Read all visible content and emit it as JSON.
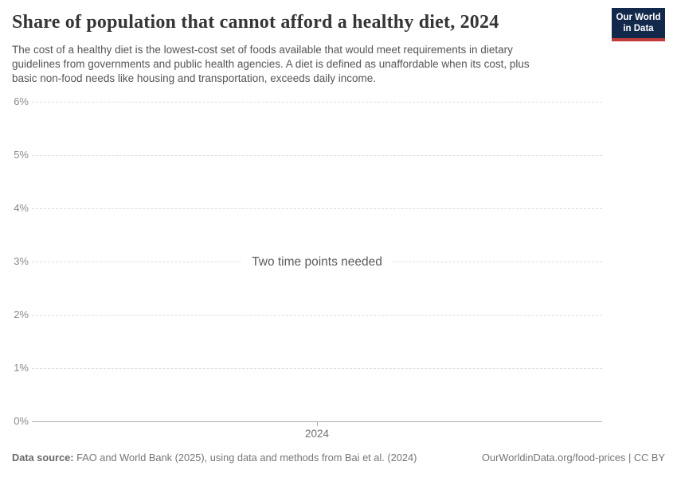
{
  "header": {
    "title": "Share of population that cannot afford a healthy diet, 2024",
    "subtitle_lines": [
      "The cost of a healthy diet is the lowest-cost set of foods available that would meet requirements in dietary",
      "guidelines from governments and public health agencies. A diet is defined as unaffordable when its cost, plus",
      "basic non-food needs like housing and transportation, exceeds daily income."
    ],
    "logo": {
      "line1": "Our World",
      "line2": "in Data",
      "bg_color": "#12294b",
      "accent_color": "#c23b3b"
    }
  },
  "chart_data": {
    "type": "line",
    "title": "Share of population that cannot afford a healthy diet, 2024",
    "series": [],
    "empty_state_message": "Two time points needed",
    "x_ticks": [
      "2024"
    ],
    "y_ticks": [
      "0%",
      "1%",
      "2%",
      "3%",
      "4%",
      "5%",
      "6%"
    ],
    "ylim": [
      0,
      6
    ],
    "y_unit": "%",
    "grid": "horizontal-dashed",
    "legend": "none"
  },
  "colors": {
    "gridline": "#dedede",
    "axis_line": "#adadad",
    "y_label": "#8a8a8a",
    "x_label": "#6f6f6f",
    "title": "#363636",
    "subtitle": "#555555",
    "footer": "#757575"
  },
  "footer": {
    "datasource_label": "Data source:",
    "datasource_text": " FAO and World Bank (2025), using data and methods from Bai et al. (2024)",
    "rights": "OurWorldinData.org/food-prices | CC BY"
  }
}
